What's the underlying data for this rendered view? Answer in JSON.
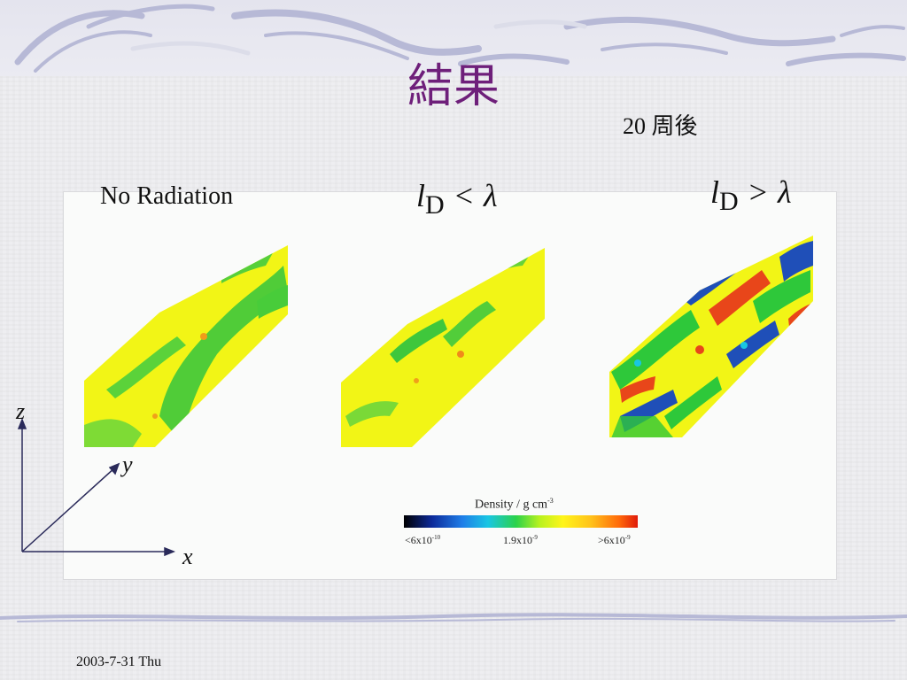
{
  "slide": {
    "title": "結果",
    "subtitle": "20 周後",
    "footer_date": "2003-7-31 Thu"
  },
  "panels": {
    "left_label": "No Radiation",
    "middle_label": {
      "var": "l",
      "sub": "D",
      "op": "<",
      "rhs": "λ"
    },
    "right_label": {
      "var": "l",
      "sub": "D",
      "op": ">",
      "rhs": "λ"
    }
  },
  "colorbar": {
    "title": "Density  /  g cm",
    "title_exp": "-3",
    "ticks": [
      {
        "mantissa": "<6x10",
        "exp": "-10"
      },
      {
        "mantissa": "1.9x10",
        "exp": "-9"
      },
      {
        "mantissa": ">6x10",
        "exp": "-9"
      }
    ],
    "colors": [
      "#000000",
      "#1f7ee8",
      "#2bd24a",
      "#fff51a",
      "#e01a0a"
    ]
  },
  "axes": {
    "x": "x",
    "y": "y",
    "z": "z"
  },
  "colors": {
    "title": "#6e1f7a",
    "sim_yellow": "#f2f516",
    "sim_green": "#2ec83a",
    "sim_blue": "#1f4fb8",
    "sim_red": "#e8461a"
  }
}
